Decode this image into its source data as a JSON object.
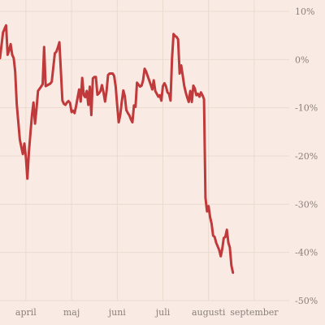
{
  "chart_data": {
    "type": "line",
    "title": "",
    "xlabel": "",
    "ylabel": "",
    "grid": true,
    "legend": "none",
    "colors": {
      "background": "#f9ebe4",
      "line": "#c0393b",
      "grid": "#ecd9cf",
      "label": "#8a7f7a"
    },
    "x_tick_labels": [
      "april",
      "maj",
      "juni",
      "juli",
      "augusti",
      "september"
    ],
    "y_ticks": [
      10,
      0,
      -10,
      -20,
      -30,
      -40,
      -50
    ],
    "y_tick_labels": [
      "10%",
      "0%",
      "-10%",
      "-20%",
      "-30%",
      "-40%",
      "-50%"
    ],
    "ylim": [
      -50,
      10
    ],
    "xlim": [
      "2022-03-20",
      "2022-09-26"
    ],
    "x_ticks_dates": [
      "2022-04-06",
      "2022-05-06",
      "2022-06-05",
      "2022-07-05",
      "2022-08-04",
      "2022-09-03"
    ],
    "series": [
      {
        "name": "",
        "points": [
          [
            "2022-03-20",
            0.3
          ],
          [
            "2022-03-22",
            5.6
          ],
          [
            "2022-03-23",
            6.4
          ],
          [
            "2022-03-24",
            7.1
          ],
          [
            "2022-03-25",
            1.0
          ],
          [
            "2022-03-26",
            1.9
          ],
          [
            "2022-03-27",
            3.2
          ],
          [
            "2022-03-28",
            1.0
          ],
          [
            "2022-03-29",
            0.3
          ],
          [
            "2022-03-30",
            -2.5
          ],
          [
            "2022-03-31",
            -9.2
          ],
          [
            "2022-04-02",
            -16.6
          ],
          [
            "2022-04-03",
            -18.1
          ],
          [
            "2022-04-04",
            -19.6
          ],
          [
            "2022-04-05",
            -17.4
          ],
          [
            "2022-04-06",
            -20.3
          ],
          [
            "2022-04-07",
            -24.7
          ],
          [
            "2022-04-08",
            -19.1
          ],
          [
            "2022-04-09",
            -15.2
          ],
          [
            "2022-04-10",
            -11.6
          ],
          [
            "2022-04-11",
            -8.9
          ],
          [
            "2022-04-12",
            -13.3
          ],
          [
            "2022-04-13",
            -10.1
          ],
          [
            "2022-04-14",
            -6.5
          ],
          [
            "2022-04-16",
            -5.6
          ],
          [
            "2022-04-17",
            -5.1
          ],
          [
            "2022-04-18",
            2.6
          ],
          [
            "2022-04-19",
            -5.5
          ],
          [
            "2022-04-22",
            -5.0
          ],
          [
            "2022-04-23",
            -4.6
          ],
          [
            "2022-04-25",
            1.3
          ],
          [
            "2022-04-26",
            1.6
          ],
          [
            "2022-04-27",
            2.5
          ],
          [
            "2022-04-28",
            3.6
          ],
          [
            "2022-04-30",
            -8.5
          ],
          [
            "2022-05-01",
            -9.2
          ],
          [
            "2022-05-02",
            -9.4
          ],
          [
            "2022-05-03",
            -8.9
          ],
          [
            "2022-05-04",
            -8.6
          ],
          [
            "2022-05-05",
            -9.0
          ],
          [
            "2022-05-06",
            -10.9
          ],
          [
            "2022-05-07",
            -10.6
          ],
          [
            "2022-05-08",
            -11.1
          ],
          [
            "2022-05-09",
            -9.6
          ],
          [
            "2022-05-10",
            -7.8
          ],
          [
            "2022-05-11",
            -6.2
          ],
          [
            "2022-05-12",
            -8.7
          ],
          [
            "2022-05-13",
            -3.8
          ],
          [
            "2022-05-14",
            -7.4
          ],
          [
            "2022-05-15",
            -7.8
          ],
          [
            "2022-05-16",
            -6.5
          ],
          [
            "2022-05-17",
            -9.4
          ],
          [
            "2022-05-18",
            -5.6
          ],
          [
            "2022-05-19",
            -11.5
          ],
          [
            "2022-05-20",
            -3.9
          ],
          [
            "2022-05-21",
            -3.6
          ],
          [
            "2022-05-22",
            -3.6
          ],
          [
            "2022-05-23",
            -7.3
          ],
          [
            "2022-05-24",
            -7.0
          ],
          [
            "2022-05-25",
            -6.5
          ],
          [
            "2022-05-26",
            -5.3
          ],
          [
            "2022-05-27",
            -6.8
          ],
          [
            "2022-05-28",
            -8.7
          ],
          [
            "2022-05-29",
            -6.5
          ],
          [
            "2022-05-30",
            -3.2
          ],
          [
            "2022-05-31",
            -2.9
          ],
          [
            "2022-06-01",
            -2.9
          ],
          [
            "2022-06-02",
            -2.9
          ],
          [
            "2022-06-03",
            -3.4
          ],
          [
            "2022-06-04",
            -5.6
          ],
          [
            "2022-06-05",
            -9.6
          ],
          [
            "2022-06-06",
            -13.0
          ],
          [
            "2022-06-07",
            -11.5
          ],
          [
            "2022-06-08",
            -8.7
          ],
          [
            "2022-06-09",
            -6.4
          ],
          [
            "2022-06-10",
            -7.6
          ],
          [
            "2022-06-11",
            -10.5
          ],
          [
            "2022-06-12",
            -11.1
          ],
          [
            "2022-06-13",
            -11.6
          ],
          [
            "2022-06-14",
            -12.4
          ],
          [
            "2022-06-15",
            -13.0
          ],
          [
            "2022-06-16",
            -9.5
          ],
          [
            "2022-06-17",
            -9.8
          ],
          [
            "2022-06-18",
            -4.8
          ],
          [
            "2022-06-20",
            -5.6
          ],
          [
            "2022-06-21",
            -5.4
          ],
          [
            "2022-06-22",
            -4.3
          ],
          [
            "2022-06-23",
            -1.9
          ],
          [
            "2022-06-24",
            -2.5
          ],
          [
            "2022-06-25",
            -3.4
          ],
          [
            "2022-06-26",
            -4.3
          ],
          [
            "2022-06-27",
            -5.2
          ],
          [
            "2022-06-28",
            -6.2
          ],
          [
            "2022-06-29",
            -4.3
          ],
          [
            "2022-06-30",
            -6.5
          ],
          [
            "2022-07-01",
            -7.1
          ],
          [
            "2022-07-02",
            -7.7
          ],
          [
            "2022-07-03",
            -7.4
          ],
          [
            "2022-07-04",
            -8.5
          ],
          [
            "2022-07-05",
            -5.5
          ],
          [
            "2022-07-06",
            -4.9
          ],
          [
            "2022-07-07",
            -5.5
          ],
          [
            "2022-07-08",
            -6.8
          ],
          [
            "2022-07-09",
            -7.1
          ],
          [
            "2022-07-10",
            -8.5
          ],
          [
            "2022-07-11",
            0.1
          ],
          [
            "2022-07-12",
            5.3
          ],
          [
            "2022-07-13",
            4.9
          ],
          [
            "2022-07-14",
            4.7
          ],
          [
            "2022-07-15",
            4.2
          ],
          [
            "2022-07-16",
            -2.9
          ],
          [
            "2022-07-17",
            -1.2
          ],
          [
            "2022-07-18",
            -3.2
          ],
          [
            "2022-07-19",
            -5.4
          ],
          [
            "2022-07-20",
            -6.8
          ],
          [
            "2022-07-21",
            -7.9
          ],
          [
            "2022-07-22",
            -8.8
          ],
          [
            "2022-07-23",
            -6.5
          ],
          [
            "2022-07-24",
            -8.8
          ],
          [
            "2022-07-25",
            -5.4
          ],
          [
            "2022-07-26",
            -6.0
          ],
          [
            "2022-07-27",
            -7.4
          ],
          [
            "2022-07-28",
            -7.1
          ],
          [
            "2022-07-29",
            -7.7
          ],
          [
            "2022-07-30",
            -6.8
          ],
          [
            "2022-07-31",
            -7.4
          ],
          [
            "2022-08-01",
            -8.2
          ],
          [
            "2022-08-02",
            -28.7
          ],
          [
            "2022-08-03",
            -31.5
          ],
          [
            "2022-08-04",
            -30.4
          ],
          [
            "2022-08-05",
            -32.7
          ],
          [
            "2022-08-06",
            -34.0
          ],
          [
            "2022-08-07",
            -36.5
          ],
          [
            "2022-08-08",
            -36.8
          ],
          [
            "2022-08-09",
            -38.0
          ],
          [
            "2022-08-11",
            -39.5
          ],
          [
            "2022-08-12",
            -40.8
          ],
          [
            "2022-08-13",
            -39.2
          ],
          [
            "2022-08-14",
            -37.0
          ],
          [
            "2022-08-15",
            -36.8
          ],
          [
            "2022-08-16",
            -35.3
          ],
          [
            "2022-08-17",
            -38.0
          ],
          [
            "2022-08-18",
            -39.0
          ],
          [
            "2022-08-19",
            -42.7
          ],
          [
            "2022-08-20",
            -44.2
          ]
        ]
      }
    ]
  }
}
